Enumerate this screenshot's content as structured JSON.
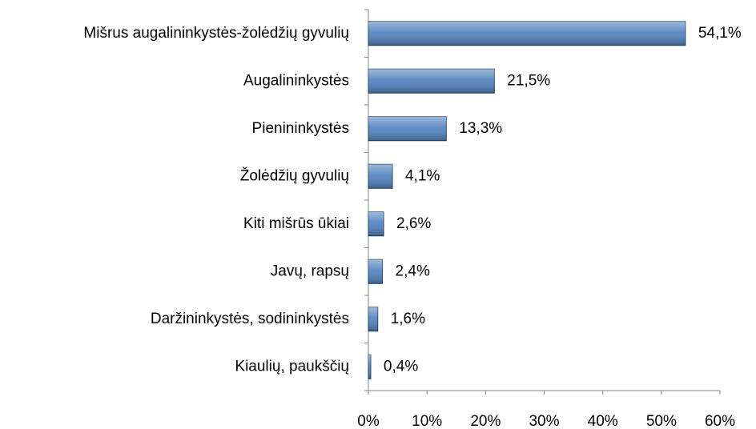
{
  "chart_data": {
    "type": "bar",
    "orientation": "horizontal",
    "categories": [
      "Mišrus augalininkystės-žolėdžių gyvulių",
      "Augalininkystės",
      "Pienininkystės",
      "Žolėdžių gyvulių",
      "Kiti mišrūs ūkiai",
      "Javų, rapsų",
      "Daržininkystės, sodininkystės",
      "Kiaulių, paukščių"
    ],
    "values": [
      54.1,
      21.5,
      13.3,
      4.1,
      2.6,
      2.4,
      1.6,
      0.4
    ],
    "value_labels": [
      "54,1%",
      "21,5%",
      "13,3%",
      "4,1%",
      "2,6%",
      "2,4%",
      "1,6%",
      "0,4%"
    ],
    "color": "#4f81bd",
    "xlim": [
      0,
      60
    ],
    "xticks": [
      {
        "value": 0,
        "label": "0%"
      },
      {
        "value": 10,
        "label": "10%"
      },
      {
        "value": 20,
        "label": "20%"
      },
      {
        "value": 30,
        "label": "30%"
      },
      {
        "value": 40,
        "label": "40%"
      },
      {
        "value": 50,
        "label": "50%"
      },
      {
        "value": 60,
        "label": "60%"
      }
    ],
    "grid": false
  }
}
